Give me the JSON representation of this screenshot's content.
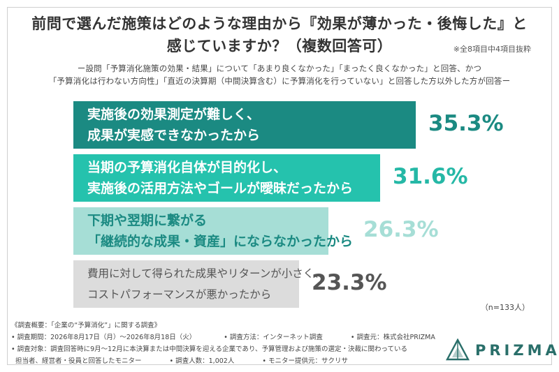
{
  "header": {
    "title_line1": "前問で選んだ施策はどのような理由から『効果が薄かった・後悔した』と",
    "title_line2": "感じていますか？（複数回答可）",
    "note": "※全8項目中4項目抜粋",
    "subtitle_line1": "ー設問「予算消化施策の効果・結果」について「あまり良くなかった」「まったく良くなかった」と回答、かつ",
    "subtitle_line2": "「予算消化は行わない方向性」「直近の決算期（中間決算含む）に予算消化を行っていない」と回答した方以外した方が回答ー"
  },
  "chart_data": {
    "type": "bar",
    "orientation": "horizontal",
    "categories": [
      [
        "実施後の効果測定が難しく、",
        "成果が実感できなかったから"
      ],
      [
        "当期の予算消化自体が目的化し、",
        "実施後の活用方法やゴールが曖昧だったから"
      ],
      [
        "下期や翌期に繋がる",
        "「継続的な成果・資産」にならなかったから"
      ],
      [
        "費用に対して得られた成果やリターンが小さく、",
        "コストパフォーマンスが悪かったから"
      ]
    ],
    "values": [
      35.3,
      31.6,
      26.3,
      23.3
    ],
    "value_labels": [
      "35.3%",
      "31.6%",
      "26.3%",
      "23.3%"
    ],
    "bar_colors": [
      "#1b8a82",
      "#25c2ad",
      "#a6ded6",
      "#dcdcdc"
    ],
    "label_colors": [
      "#ffffff",
      "#ffffff",
      "#1b8a82",
      "#555555"
    ],
    "value_colors": [
      "#1b8a82",
      "#25b8a6",
      "#a6ded6",
      "#555555"
    ],
    "xlim": [
      0,
      35.3
    ],
    "n_label": "（n=133人）"
  },
  "footer": {
    "line1": "《調査概要：「企業の“予算消化”」に関する調査》",
    "period": "• 調査期間：2026年8月17日（月）〜2026年8月18日（火）",
    "method": "• 調査方法：インターネット調査",
    "source": "• 調査元：株式会社PRIZMA",
    "target1": "• 調査対象：調査回答時に9月〜12月に本決算または中間決算を迎える企業であり、予算管理および施策の選定・決裁に関わっている",
    "target2": "担当者、経営者・役員と回答したモニター",
    "count": "• 調査人数：1,002人",
    "provider": "• モニター提供元：サクリサ"
  },
  "logo": {
    "text": "PRIZMA",
    "color": "#2a6f6a"
  }
}
